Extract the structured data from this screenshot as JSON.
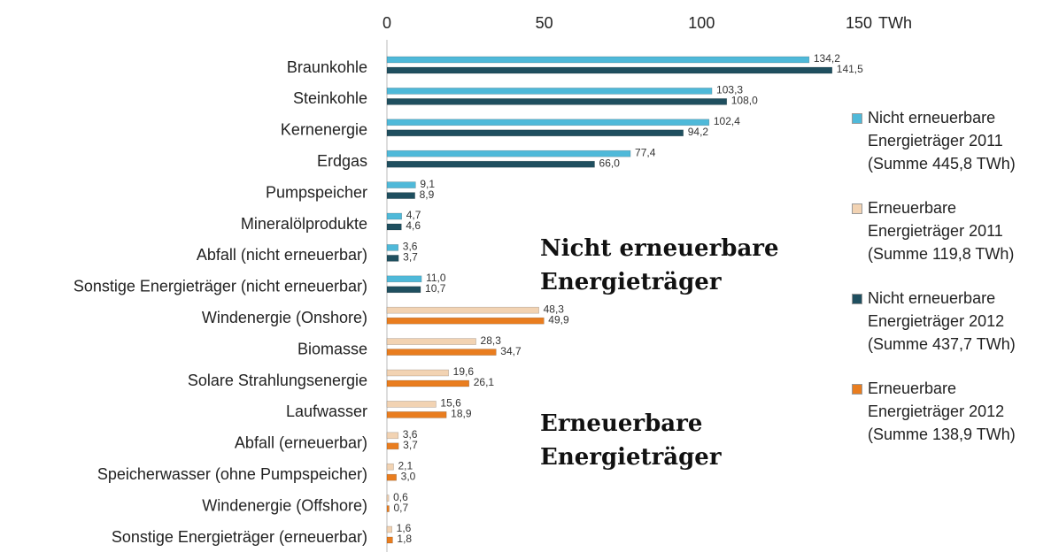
{
  "chart_data": {
    "type": "bar",
    "orientation": "horizontal",
    "categories": [
      "Braunkohle",
      "Steinkohle",
      "Kernenergie",
      "Erdgas",
      "Pumpspeicher",
      "Mineralölprodukte",
      "Abfall (nicht erneuerbar)",
      "Sonstige Energieträger (nicht erneuerbar)",
      "Windenergie (Onshore)",
      "Biomasse",
      "Solare Strahlungsenergie",
      "Laufwasser",
      "Abfall (erneuerbar)",
      "Speicherwasser (ohne Pumpspeicher)",
      "Windenergie (Offshore)",
      "Sonstige Energieträger (erneuerbar)"
    ],
    "series": [
      {
        "name": "Nicht erneuerbare Energieträger 2011 (Summe 445,8 TWh)",
        "color": "#4fb9d9",
        "values": [
          134.2,
          103.3,
          102.4,
          77.4,
          9.1,
          4.7,
          3.6,
          11.0,
          null,
          null,
          null,
          null,
          null,
          null,
          null,
          null
        ],
        "value_labels": [
          "134,2",
          "103,3",
          "102,4",
          "77,4",
          "9,1",
          "4,7",
          "3,6",
          "11,0",
          null,
          null,
          null,
          null,
          null,
          null,
          null,
          null
        ]
      },
      {
        "name": "Erneuerbare Energieträger 2011 (Summe 119,8 TWh)",
        "color": "#f2d3b3",
        "values": [
          null,
          null,
          null,
          null,
          null,
          null,
          null,
          null,
          48.3,
          28.3,
          19.6,
          15.6,
          3.6,
          2.1,
          0.6,
          1.6
        ],
        "value_labels": [
          null,
          null,
          null,
          null,
          null,
          null,
          null,
          null,
          "48,3",
          "28,3",
          "19,6",
          "15,6",
          "3,6",
          "2,1",
          "0,6",
          "1,6"
        ]
      },
      {
        "name": "Nicht erneuerbare Energieträger 2012 (Summe 437,7 TWh)",
        "color": "#1f4f5f",
        "values": [
          141.5,
          108.0,
          94.2,
          66.0,
          8.9,
          4.6,
          3.7,
          10.7,
          null,
          null,
          null,
          null,
          null,
          null,
          null,
          null
        ],
        "value_labels": [
          "141,5",
          "108,0",
          "94,2",
          "66,0",
          "8,9",
          "4,6",
          "3,7",
          "10,7",
          null,
          null,
          null,
          null,
          null,
          null,
          null,
          null
        ]
      },
      {
        "name": "Erneuerbare Energieträger 2012 (Summe 138,9 TWh)",
        "color": "#e97d1f",
        "values": [
          null,
          null,
          null,
          null,
          null,
          null,
          null,
          null,
          49.9,
          34.7,
          26.1,
          18.9,
          3.7,
          3.0,
          0.7,
          1.8
        ],
        "value_labels": [
          null,
          null,
          null,
          null,
          null,
          null,
          null,
          null,
          "49,9",
          "34,7",
          "26,1",
          "18,9",
          "3,7",
          "3,0",
          "0,7",
          "1,8"
        ]
      }
    ],
    "xlim": [
      0,
      150
    ],
    "xticks": [
      0,
      50,
      100,
      150
    ],
    "x_unit": "TWh",
    "annotations": [
      {
        "lines": [
          "Nicht erneuerbare",
          "Energieträger"
        ]
      },
      {
        "lines": [
          "Erneuerbare",
          "Energieträger"
        ]
      }
    ],
    "legend": "right"
  }
}
